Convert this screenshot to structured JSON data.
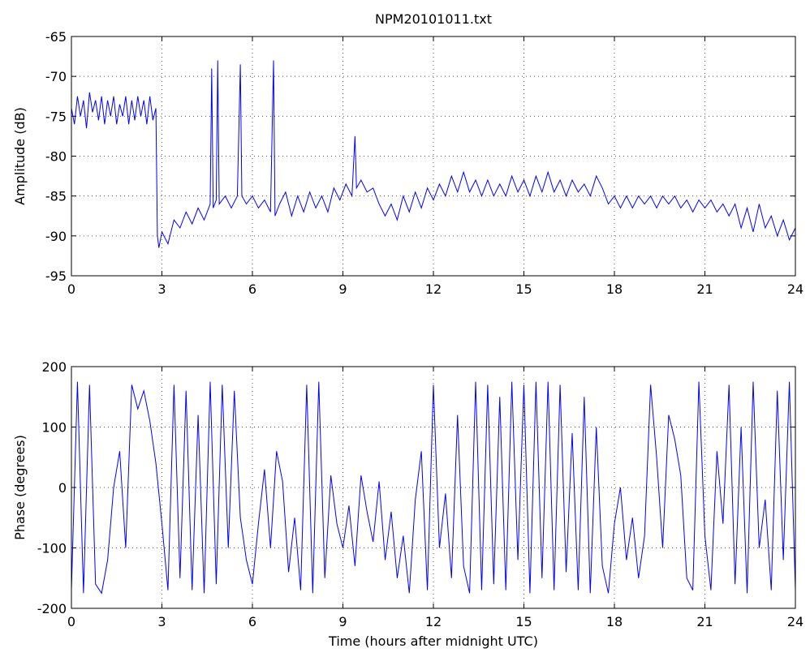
{
  "chart_data": [
    {
      "type": "line",
      "title": "NPM20101011.txt",
      "ylabel": "Amplitude (dB)",
      "xlim": [
        0,
        24
      ],
      "xticks": [
        0,
        3,
        6,
        9,
        12,
        15,
        18,
        21,
        24
      ],
      "ylim": [
        -95,
        -65
      ],
      "yticks": [
        -95,
        -90,
        -85,
        -80,
        -75,
        -70,
        -65
      ],
      "grid": true,
      "series": [
        {
          "color": "#0000ff",
          "x": [
            0,
            0.1,
            0.2,
            0.3,
            0.4,
            0.5,
            0.6,
            0.7,
            0.8,
            0.9,
            1.0,
            1.1,
            1.2,
            1.3,
            1.4,
            1.5,
            1.6,
            1.7,
            1.8,
            1.9,
            2.0,
            2.1,
            2.2,
            2.3,
            2.4,
            2.5,
            2.6,
            2.7,
            2.8,
            2.85,
            2.9,
            3.0,
            3.2,
            3.4,
            3.6,
            3.8,
            4.0,
            4.2,
            4.4,
            4.6,
            4.65,
            4.7,
            4.8,
            4.85,
            4.9,
            5.1,
            5.3,
            5.5,
            5.6,
            5.65,
            5.8,
            6.0,
            6.2,
            6.4,
            6.6,
            6.7,
            6.75,
            6.9,
            7.1,
            7.3,
            7.5,
            7.7,
            7.9,
            8.1,
            8.3,
            8.5,
            8.7,
            8.9,
            9.1,
            9.3,
            9.4,
            9.45,
            9.6,
            9.8,
            10.0,
            10.2,
            10.4,
            10.6,
            10.8,
            11.0,
            11.2,
            11.4,
            11.6,
            11.8,
            12.0,
            12.2,
            12.4,
            12.6,
            12.8,
            13.0,
            13.2,
            13.4,
            13.6,
            13.8,
            14.0,
            14.2,
            14.4,
            14.6,
            14.8,
            15.0,
            15.2,
            15.4,
            15.6,
            15.8,
            16.0,
            16.2,
            16.4,
            16.6,
            16.8,
            17.0,
            17.2,
            17.4,
            17.6,
            17.8,
            18.0,
            18.2,
            18.4,
            18.6,
            18.8,
            19.0,
            19.2,
            19.4,
            19.6,
            19.8,
            20.0,
            20.2,
            20.4,
            20.6,
            20.8,
            21.0,
            21.2,
            21.4,
            21.6,
            21.8,
            22.0,
            22.2,
            22.4,
            22.6,
            22.8,
            23.0,
            23.2,
            23.4,
            23.6,
            23.8,
            24.0
          ],
          "values": [
            -74,
            -76,
            -72.5,
            -75,
            -73,
            -76.5,
            -72,
            -74.5,
            -73,
            -75.5,
            -72.5,
            -76,
            -73,
            -75,
            -72.5,
            -76,
            -73.5,
            -75,
            -72.5,
            -76,
            -73,
            -75.5,
            -72.5,
            -75,
            -73,
            -76,
            -72.5,
            -75.5,
            -74,
            -90,
            -91.5,
            -89.5,
            -91,
            -88,
            -89,
            -87,
            -88.5,
            -86.5,
            -88,
            -86,
            -69,
            -86.5,
            -85.5,
            -68,
            -86,
            -85,
            -86.5,
            -85,
            -68.5,
            -85,
            -86,
            -85,
            -86.5,
            -85.5,
            -87,
            -68,
            -87.5,
            -86,
            -84.5,
            -87.5,
            -85,
            -87,
            -84.5,
            -86.5,
            -85,
            -87,
            -84,
            -85.5,
            -83.5,
            -85,
            -77.5,
            -84,
            -83,
            -84.5,
            -84,
            -86,
            -87.5,
            -86,
            -88,
            -85,
            -87,
            -84.5,
            -86.5,
            -84,
            -85.5,
            -83.5,
            -85,
            -82.5,
            -84.5,
            -82,
            -84.5,
            -83,
            -85,
            -83,
            -85,
            -83.5,
            -85,
            -82.5,
            -84.5,
            -83,
            -85,
            -82.5,
            -84.5,
            -82,
            -84.5,
            -83,
            -85,
            -83,
            -84.5,
            -83.5,
            -85,
            -82.5,
            -84,
            -86,
            -85,
            -86.5,
            -85,
            -86.5,
            -85,
            -86,
            -85,
            -86.5,
            -85,
            -86,
            -85,
            -86.5,
            -85.5,
            -87,
            -85.5,
            -86.5,
            -85.5,
            -87,
            -86,
            -87.5,
            -86,
            -89,
            -86.5,
            -89.5,
            -86,
            -89,
            -87.5,
            -90,
            -88,
            -90.5,
            -89
          ]
        }
      ]
    },
    {
      "type": "line",
      "xlabel": "Time (hours after midnight UTC)",
      "ylabel": "Phase (degrees)",
      "xlim": [
        0,
        24
      ],
      "xticks": [
        0,
        3,
        6,
        9,
        12,
        15,
        18,
        21,
        24
      ],
      "ylim": [
        -200,
        200
      ],
      "yticks": [
        -200,
        -100,
        0,
        100,
        200
      ],
      "grid": true,
      "series": [
        {
          "color": "#0000ff",
          "x": [
            0,
            0.2,
            0.4,
            0.6,
            0.8,
            1.0,
            1.2,
            1.4,
            1.6,
            1.8,
            2.0,
            2.2,
            2.4,
            2.6,
            2.8,
            3.0,
            3.2,
            3.4,
            3.6,
            3.8,
            4.0,
            4.2,
            4.4,
            4.6,
            4.8,
            5.0,
            5.2,
            5.4,
            5.6,
            5.8,
            6.0,
            6.2,
            6.4,
            6.6,
            6.8,
            7.0,
            7.2,
            7.4,
            7.6,
            7.8,
            8.0,
            8.2,
            8.4,
            8.6,
            8.8,
            9.0,
            9.2,
            9.4,
            9.6,
            9.8,
            10.0,
            10.2,
            10.4,
            10.6,
            10.8,
            11.0,
            11.2,
            11.4,
            11.6,
            11.8,
            12.0,
            12.2,
            12.4,
            12.6,
            12.8,
            13.0,
            13.2,
            13.4,
            13.6,
            13.8,
            14.0,
            14.2,
            14.4,
            14.6,
            14.8,
            15.0,
            15.2,
            15.4,
            15.6,
            15.8,
            16.0,
            16.2,
            16.4,
            16.6,
            16.8,
            17.0,
            17.2,
            17.4,
            17.6,
            17.8,
            18.0,
            18.2,
            18.4,
            18.6,
            18.8,
            19.0,
            19.2,
            19.4,
            19.6,
            19.8,
            20.0,
            20.2,
            20.4,
            20.6,
            20.8,
            21.0,
            21.2,
            21.4,
            21.6,
            21.8,
            22.0,
            22.2,
            22.4,
            22.6,
            22.8,
            23.0,
            23.2,
            23.4,
            23.6,
            23.8,
            24.0
          ],
          "values": [
            -170,
            175,
            -175,
            170,
            -160,
            -175,
            -120,
            0,
            60,
            -100,
            170,
            130,
            160,
            110,
            40,
            -60,
            -170,
            170,
            -150,
            160,
            -170,
            120,
            -175,
            175,
            -160,
            170,
            -100,
            160,
            -50,
            -120,
            -160,
            -60,
            30,
            -100,
            60,
            10,
            -140,
            -50,
            -170,
            170,
            -175,
            175,
            -150,
            20,
            -60,
            -100,
            -30,
            -130,
            20,
            -40,
            -90,
            10,
            -120,
            -40,
            -150,
            -80,
            -175,
            -20,
            60,
            -170,
            170,
            -100,
            -10,
            -150,
            120,
            -130,
            -175,
            175,
            -170,
            170,
            -160,
            150,
            -170,
            175,
            -120,
            170,
            -175,
            175,
            -150,
            175,
            -170,
            170,
            -140,
            90,
            -170,
            150,
            -175,
            100,
            -130,
            -175,
            -60,
            0,
            -120,
            -50,
            -150,
            -80,
            170,
            50,
            -100,
            120,
            80,
            20,
            -150,
            -170,
            175,
            -80,
            -170,
            60,
            -60,
            170,
            -160,
            100,
            -175,
            175,
            -100,
            -20,
            -170,
            160,
            -120,
            175,
            -170
          ]
        }
      ]
    }
  ]
}
